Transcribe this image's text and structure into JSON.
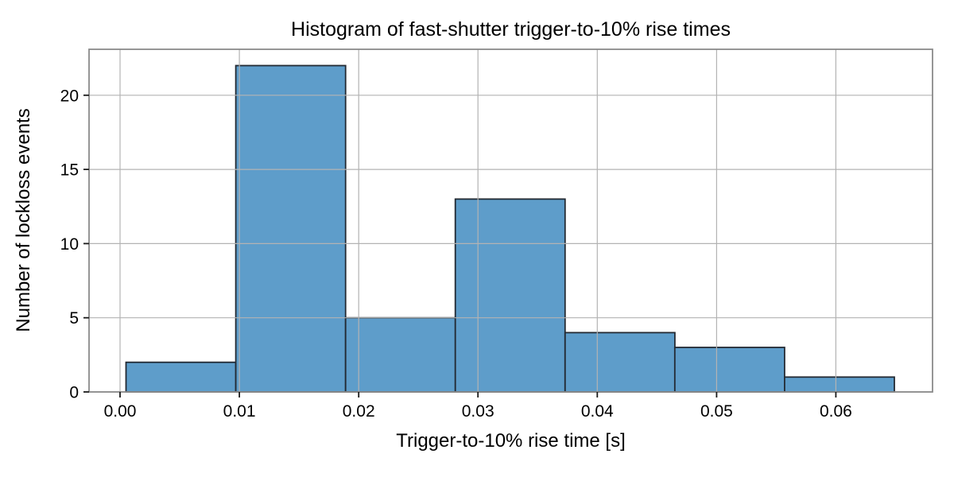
{
  "chart_data": {
    "type": "bar",
    "subtype": "histogram",
    "title": "Histogram of fast-shutter trigger-to-10% rise times",
    "xlabel": "Trigger-to-10% rise time [s]",
    "ylabel": "Number of lockloss events",
    "bin_edges": [
      0.0005,
      0.0097,
      0.0189,
      0.0281,
      0.0373,
      0.0465,
      0.0557,
      0.0649
    ],
    "counts": [
      2,
      22,
      5,
      13,
      4,
      3,
      1
    ],
    "xticks": {
      "values": [
        0.0,
        0.01,
        0.02,
        0.03,
        0.04,
        0.05,
        0.06
      ],
      "labels": [
        "0.00",
        "0.01",
        "0.02",
        "0.03",
        "0.04",
        "0.05",
        "0.06"
      ]
    },
    "yticks": {
      "values": [
        0,
        5,
        10,
        15,
        20
      ],
      "labels": [
        "0",
        "5",
        "10",
        "15",
        "20"
      ]
    },
    "xlim": [
      -0.0026,
      0.0681
    ],
    "ylim": [
      0,
      23.1
    ],
    "grid": true,
    "grid_above_bars": true,
    "legend": false,
    "colors": {
      "background": "#ffffff",
      "bar_fill": "#5e9dca",
      "bar_edge": "#232a33",
      "grid": "#b3b3b3",
      "spine": "#8a8a8a",
      "tick_mark": "#1a1a1a",
      "text": "#000000"
    }
  }
}
